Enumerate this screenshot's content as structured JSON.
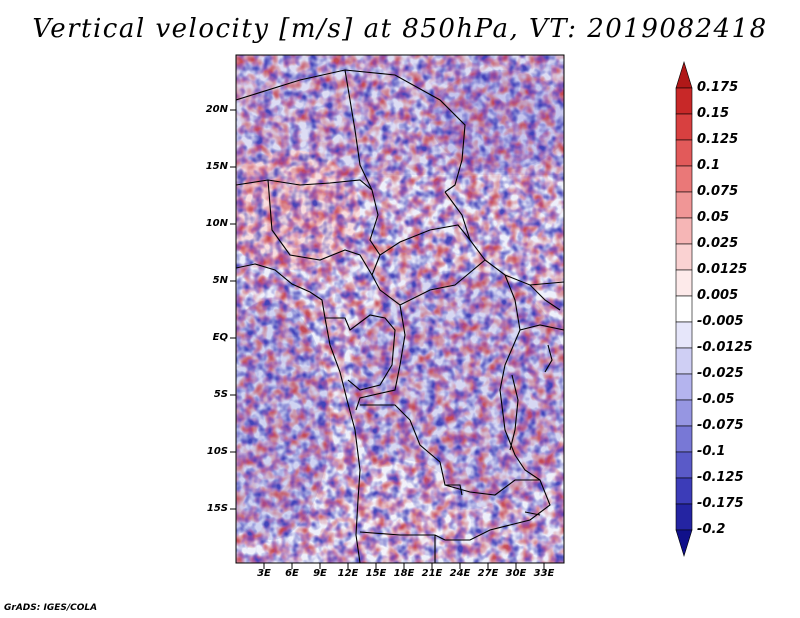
{
  "title": "Vertical velocity [m/s] at 850hPa, VT: 2019082418",
  "map": {
    "lat_labels": [
      "20N",
      "15N",
      "10N",
      "5N",
      "EQ",
      "5S",
      "10S",
      "15S"
    ],
    "lon_labels": [
      "3E",
      "6E",
      "9E",
      "12E",
      "15E",
      "18E",
      "21E",
      "24E",
      "27E",
      "30E",
      "33E"
    ]
  },
  "colorbar": {
    "labels": [
      "0.175",
      "0.15",
      "0.125",
      "0.1",
      "0.075",
      "0.05",
      "0.025",
      "0.0125",
      "0.005",
      "-0.005",
      "-0.0125",
      "-0.025",
      "-0.05",
      "-0.075",
      "-0.1",
      "-0.125",
      "-0.175",
      "-0.2"
    ],
    "colors": [
      "#b01818",
      "#c82828",
      "#d84040",
      "#e25a5a",
      "#ea7878",
      "#f09696",
      "#f6b6b6",
      "#fad2d2",
      "#fdeaea",
      "#ffffff",
      "#e6e6fa",
      "#cfcff4",
      "#b4b4ee",
      "#9696e2",
      "#7878d6",
      "#5a5ac8",
      "#3c3cb8",
      "#2424a2",
      "#10108a"
    ]
  },
  "credit": "GrADS: IGES/COLA"
}
